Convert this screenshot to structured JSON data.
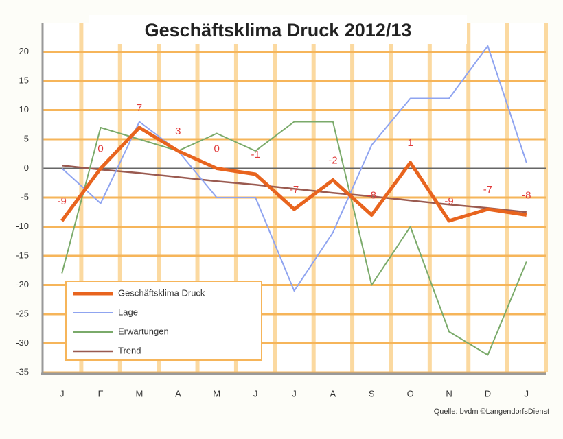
{
  "chart_data": {
    "type": "line",
    "title": "Geschäftsklima Druck 2012/13",
    "source": "Quelle: bvdm ©LangendorfsDienst",
    "categories": [
      "J",
      "F",
      "M",
      "A",
      "M",
      "J",
      "J",
      "A",
      "S",
      "O",
      "N",
      "D",
      "J"
    ],
    "series": [
      {
        "name": "Geschäftsklima Druck",
        "color": "#e8641e",
        "width": 5,
        "labels": true,
        "values": [
          -9,
          0,
          7,
          3,
          0,
          -1,
          -7,
          -2,
          -8,
          1,
          -9,
          -7,
          -8
        ]
      },
      {
        "name": "Lage",
        "color": "#8fa4f0",
        "width": 2,
        "values": [
          0,
          -6,
          8,
          3,
          -5,
          -5,
          -21,
          -11,
          4,
          12,
          12,
          21,
          1
        ]
      },
      {
        "name": "Erwartungen",
        "color": "#7aaa6a",
        "width": 2,
        "values": [
          -18,
          7,
          5,
          3,
          6,
          3,
          8,
          8,
          -20,
          -10,
          -28,
          -32,
          -16
        ]
      },
      {
        "name": "Trend",
        "color": "#9a5a50",
        "width": 2.5,
        "values": [
          0.5,
          -0.2,
          -0.8,
          -1.5,
          -2.2,
          -2.8,
          -3.5,
          -4.2,
          -4.8,
          -5.5,
          -6.2,
          -6.8,
          -7.5
        ]
      }
    ],
    "ylim": [
      -35,
      25
    ],
    "yticks": [
      -35,
      -30,
      -25,
      -20,
      -15,
      -10,
      -5,
      0,
      5,
      10,
      15,
      20
    ],
    "grid": true
  }
}
